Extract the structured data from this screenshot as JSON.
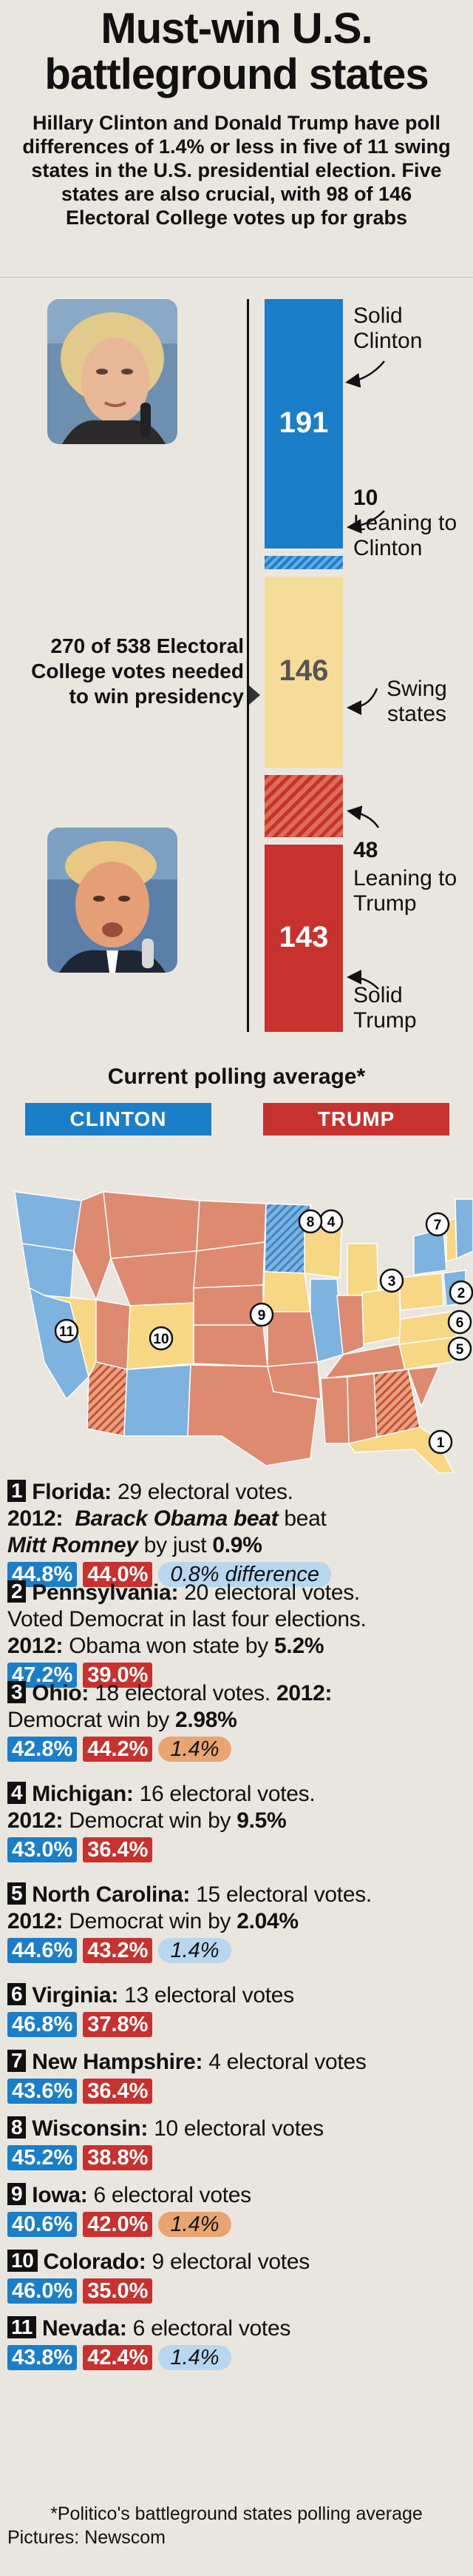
{
  "title": "Must-win U.S. battleground states",
  "intro": "Hillary Clinton and Donald Trump have poll differences of 1.4% or less in five of 11 swing states in the U.S. presidential election. Five states are also crucial, with 98 of 146 Electoral College votes up for grabs",
  "colors": {
    "clinton": "#1a7ec8",
    "trump": "#c8322e",
    "lean_clinton": "#6aa9dc",
    "swing": "#f5dc98",
    "lean_trump": "#d96e55",
    "swing_state": "#f7d783",
    "clinton_state": "#7eb2df",
    "trump_state": "#de8a70"
  },
  "chart_data": {
    "type": "bar",
    "stacked": true,
    "categories": [
      "Solid Clinton",
      "Leaning to Clinton",
      "Swing states",
      "Leaning to Trump",
      "Solid Trump"
    ],
    "values": [
      191,
      10,
      146,
      48,
      143
    ],
    "labels": {
      "solid_clinton": "Solid Clinton",
      "lean_clinton": "Leaning to Clinton",
      "swing": "Swing states",
      "lean_trump": "Leaning to Trump",
      "solid_trump": "Solid Trump"
    },
    "value_labels": {
      "solid_clinton": "191",
      "lean_clinton": "10",
      "swing": "146",
      "lean_trump": "48",
      "solid_trump": "143"
    },
    "annotation": "270 of 538 Electoral College votes needed to win presidency"
  },
  "poll": {
    "title": "Current polling average*",
    "clinton_label": "CLINTON",
    "trump_label": "TRUMP"
  },
  "map": {
    "markers": [
      "1",
      "2",
      "3",
      "4",
      "5",
      "6",
      "7",
      "8",
      "9",
      "10",
      "11"
    ]
  },
  "states": [
    {
      "num": "1",
      "name": "Florida:",
      "votes": "29 electoral votes.",
      "line2_bold": "2012:",
      "line2": "Barack Obama beat",
      "line3": "Mitt Romney",
      "line3b": " by just ",
      "line3c": "0.9%",
      "clinton": "44.8%",
      "trump": "44.0%",
      "diff": "0.8% difference",
      "diff_color": "blue"
    },
    {
      "num": "2",
      "name": "Pennsylvania:",
      "votes": "20 electoral votes.",
      "line2": "Voted Democrat in last four elections.",
      "line3_bold": "2012:",
      "line3": " Obama won state by ",
      "line3c": "5.2%",
      "clinton": "47.2%",
      "trump": "39.0%"
    },
    {
      "num": "3",
      "name": "Ohio:",
      "votes": "18 electoral votes. ",
      "votes_bold": "2012:",
      "line2": "Democrat win by ",
      "line2c": "2.98%",
      "clinton": "42.8%",
      "trump": "44.2%",
      "diff": "1.4%",
      "diff_color": "orange"
    },
    {
      "num": "4",
      "name": "Michigan:",
      "votes": "16 electoral votes.",
      "line2_bold": "2012:",
      "line2": " Democrat win by ",
      "line2c": "9.5%",
      "clinton": "43.0%",
      "trump": "36.4%"
    },
    {
      "num": "5",
      "name": "North Carolina:",
      "votes": "15 electoral votes.",
      "line2_bold": "2012:",
      "line2": " Democrat win by ",
      "line2c": "2.04%",
      "clinton": "44.6%",
      "trump": "43.2%",
      "diff": "1.4%",
      "diff_color": "blue"
    },
    {
      "num": "6",
      "name": "Virginia:",
      "votes": "13 electoral votes",
      "clinton": "46.8%",
      "trump": "37.8%"
    },
    {
      "num": "7",
      "name": "New Hampshire:",
      "votes": "4 electoral votes",
      "clinton": "43.6%",
      "trump": "36.4%"
    },
    {
      "num": "8",
      "name": "Wisconsin:",
      "votes": "10 electoral votes",
      "clinton": "45.2%",
      "trump": "38.8%"
    },
    {
      "num": "9",
      "name": "Iowa:",
      "votes": "6 electoral votes",
      "clinton": "40.6%",
      "trump": "42.0%",
      "diff": "1.4%",
      "diff_color": "orange"
    },
    {
      "num": "10",
      "name": "Colorado:",
      "votes": "9 electoral votes",
      "clinton": "46.0%",
      "trump": "35.0%"
    },
    {
      "num": "11",
      "name": "Nevada:",
      "votes": "6 electoral votes",
      "clinton": "43.8%",
      "trump": "42.4%",
      "diff": "1.4%",
      "diff_color": "blue"
    }
  ],
  "footer": {
    "note": "*Politico's battleground states polling average",
    "credit": "Pictures: Newscom"
  }
}
